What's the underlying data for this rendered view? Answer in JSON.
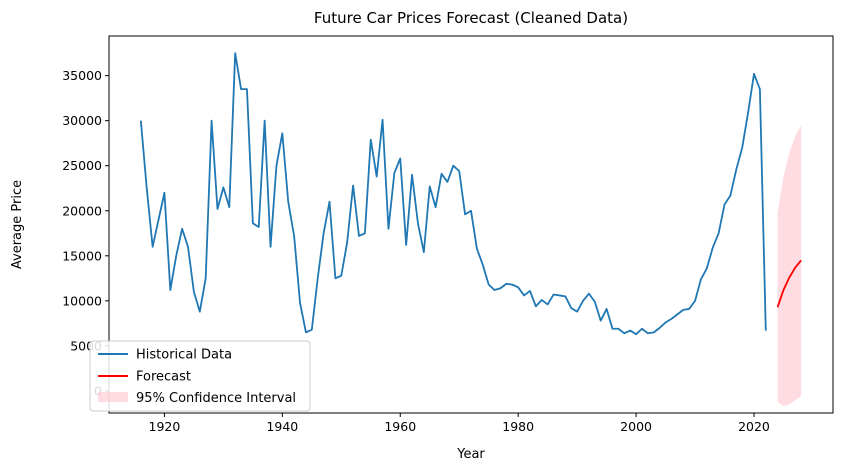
{
  "chart_data": {
    "type": "line",
    "title": "Future Car Prices Forecast (Cleaned Data)",
    "xlabel": "Year",
    "ylabel": "Average Price",
    "xlim": [
      1910.6,
      2033.4
    ],
    "ylim": [
      -2450,
      39400
    ],
    "x_ticks": [
      1920,
      1940,
      1960,
      1980,
      2000,
      2020
    ],
    "y_ticks": [
      0,
      5000,
      10000,
      15000,
      20000,
      25000,
      30000,
      35000
    ],
    "grid": false,
    "legend_position": "lower-left",
    "series": [
      {
        "name": "Historical Data",
        "color": "#1f77b4",
        "x": [
          1916,
          1917,
          1918,
          1919,
          1920,
          1921,
          1922,
          1923,
          1924,
          1925,
          1926,
          1927,
          1928,
          1929,
          1930,
          1931,
          1932,
          1933,
          1934,
          1935,
          1936,
          1937,
          1938,
          1939,
          1940,
          1941,
          1942,
          1943,
          1944,
          1945,
          1946,
          1947,
          1948,
          1949,
          1950,
          1951,
          1952,
          1953,
          1954,
          1955,
          1956,
          1957,
          1958,
          1959,
          1960,
          1961,
          1962,
          1963,
          1964,
          1965,
          1966,
          1967,
          1968,
          1969,
          1970,
          1971,
          1972,
          1973,
          1974,
          1975,
          1976,
          1977,
          1978,
          1979,
          1980,
          1981,
          1982,
          1983,
          1984,
          1985,
          1986,
          1987,
          1988,
          1989,
          1990,
          1991,
          1992,
          1993,
          1994,
          1995,
          1996,
          1997,
          1998,
          1999,
          2000,
          2001,
          2002,
          2003,
          2004,
          2005,
          2006,
          2007,
          2008,
          2009,
          2010,
          2011,
          2012,
          2013,
          2014,
          2015,
          2016,
          2017,
          2018,
          2019,
          2020,
          2021,
          2022
        ],
        "values": [
          30000,
          22500,
          16000,
          19000,
          22000,
          11200,
          15000,
          18000,
          16000,
          11000,
          8800,
          12500,
          30000,
          20200,
          22600,
          20400,
          37500,
          33500,
          33500,
          18600,
          18200,
          30000,
          16000,
          25000,
          28600,
          21000,
          17200,
          9800,
          6500,
          6800,
          12500,
          17500,
          21000,
          12500,
          12800,
          16500,
          22800,
          17200,
          17500,
          27900,
          23800,
          30100,
          18000,
          24200,
          25800,
          16200,
          24000,
          18600,
          15400,
          22700,
          20400,
          24100,
          23200,
          25000,
          24400,
          19600,
          20000,
          15800,
          14000,
          11800,
          11200,
          11400,
          11900,
          11800,
          11500,
          10600,
          11100,
          9400,
          10100,
          9600,
          10700,
          10600,
          10500,
          9200,
          8800,
          10000,
          10800,
          9900,
          7800,
          9100,
          6900,
          6900,
          6400,
          6700,
          6300,
          6900,
          6400,
          6500,
          7000,
          7600,
          8000,
          8500,
          9000,
          9100,
          10000,
          12400,
          13600,
          15900,
          17500,
          20700,
          21700,
          24600,
          27000,
          30900,
          35200,
          33500,
          6700
        ]
      },
      {
        "name": "Forecast",
        "color": "#ff0000",
        "x": [
          2024,
          2025,
          2026,
          2027,
          2028
        ],
        "values": [
          9300,
          11200,
          12600,
          13700,
          14500
        ]
      }
    ],
    "confidence_interval": {
      "name": "95% Confidence Interval",
      "color": "#ffc0cb",
      "x": [
        2024,
        2025,
        2026,
        2027,
        2028
      ],
      "lower": [
        -1200,
        -1700,
        -1500,
        -1000,
        -600
      ],
      "upper": [
        19800,
        23800,
        26500,
        28300,
        29500
      ]
    }
  }
}
